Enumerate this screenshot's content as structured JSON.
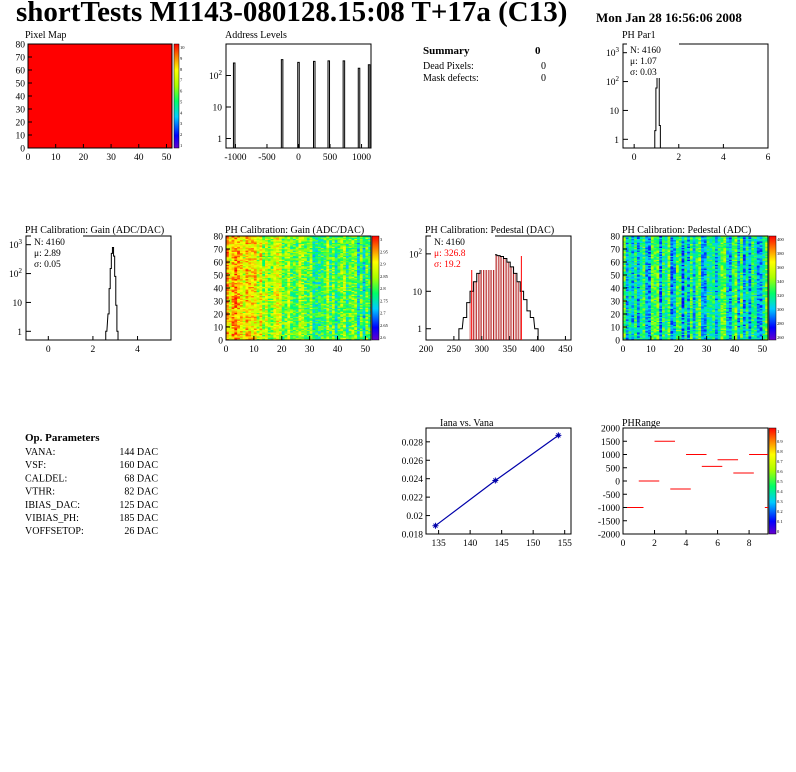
{
  "title": "shortTests M1143-080128.15:08 T+17a (C13)",
  "date": "Mon Jan 28 16:56:06 2008",
  "colors": {
    "red": "#ff0000",
    "blue": "#0000aa",
    "darkred": "#aa0000"
  },
  "summary": {
    "heading": "Summary",
    "value": "0",
    "rows": [
      {
        "label": "Dead Pixels:",
        "value": "0"
      },
      {
        "label": "Mask defects:",
        "value": "0"
      }
    ]
  },
  "op_params": {
    "heading": "Op. Parameters",
    "rows": [
      {
        "label": "VANA:",
        "value": "144 DAC"
      },
      {
        "label": "VSF:",
        "value": "160 DAC"
      },
      {
        "label": "CALDEL:",
        "value": "68 DAC"
      },
      {
        "label": "VTHR:",
        "value": "82 DAC"
      },
      {
        "label": "IBIAS_DAC:",
        "value": "125 DAC"
      },
      {
        "label": "VIBIAS_PH:",
        "value": "185 DAC"
      },
      {
        "label": "VOFFSETOP:",
        "value": "26 DAC"
      }
    ]
  },
  "chart_data": [
    {
      "id": "pixel_map",
      "type": "heatmap",
      "title": "Pixel Map",
      "x_ticks": [
        "0",
        "10",
        "20",
        "30",
        "40",
        "50"
      ],
      "y_ticks": [
        "0",
        "10",
        "20",
        "30",
        "40",
        "50",
        "60",
        "70",
        "80"
      ],
      "xlim": [
        0,
        52
      ],
      "ylim": [
        0,
        80
      ],
      "uniform_value": 10,
      "palette_ticks": [
        "10",
        "9",
        "8",
        "7",
        "6",
        "5",
        "4",
        "3",
        "2",
        "1"
      ]
    },
    {
      "id": "address_levels",
      "type": "bar",
      "title": "Address Levels",
      "log_y": true,
      "x_ticks": [
        "-1000",
        "-500",
        "0",
        "500",
        "1000"
      ],
      "y_ticks": [
        "1",
        "10",
        "10^2"
      ],
      "xlim": [
        -1150,
        1150
      ],
      "ylim": [
        0.5,
        1000
      ],
      "peaks": [
        {
          "x": -1020,
          "y": 250
        },
        {
          "x": -260,
          "y": 320
        },
        {
          "x": 0,
          "y": 260
        },
        {
          "x": 250,
          "y": 280
        },
        {
          "x": 480,
          "y": 290
        },
        {
          "x": 720,
          "y": 290
        },
        {
          "x": 960,
          "y": 170
        },
        {
          "x": 1120,
          "y": 220
        }
      ]
    },
    {
      "id": "ph_par1",
      "type": "bar",
      "title": "PH Par1",
      "log_y": true,
      "x_ticks": [
        "0",
        "2",
        "4",
        "6"
      ],
      "y_ticks": [
        "1",
        "10",
        "10^2",
        "10^3"
      ],
      "xlim": [
        -0.5,
        6
      ],
      "ylim": [
        0.5,
        2000
      ],
      "stats": [
        {
          "label": "N:",
          "value": "4160"
        },
        {
          "label": "μ:",
          "value": "1.07"
        },
        {
          "label": "σ:",
          "value": "0.03"
        }
      ],
      "bins": [
        {
          "x": 0.95,
          "y": 2
        },
        {
          "x": 1.0,
          "y": 60
        },
        {
          "x": 1.05,
          "y": 900
        },
        {
          "x": 1.1,
          "y": 400
        },
        {
          "x": 1.15,
          "y": 3
        }
      ]
    },
    {
      "id": "ph_gain_hist",
      "type": "bar",
      "title": "PH Calibration: Gain (ADC/DAC)",
      "log_y": true,
      "x_ticks": [
        "0",
        "2",
        "4"
      ],
      "y_ticks": [
        "1",
        "10",
        "10^2",
        "10^3"
      ],
      "xlim": [
        -1,
        5.5
      ],
      "ylim": [
        0.5,
        2000
      ],
      "stats": [
        {
          "label": "N:",
          "value": "4160"
        },
        {
          "label": "μ:",
          "value": "2.89"
        },
        {
          "label": "σ:",
          "value": "0.05"
        }
      ],
      "bins": [
        {
          "x": 2.6,
          "y": 1
        },
        {
          "x": 2.7,
          "y": 4
        },
        {
          "x": 2.75,
          "y": 30
        },
        {
          "x": 2.8,
          "y": 150
        },
        {
          "x": 2.85,
          "y": 500
        },
        {
          "x": 2.9,
          "y": 800
        },
        {
          "x": 2.95,
          "y": 400
        },
        {
          "x": 3.0,
          "y": 80
        },
        {
          "x": 3.05,
          "y": 8
        },
        {
          "x": 3.1,
          "y": 1
        }
      ]
    },
    {
      "id": "ph_gain_map",
      "type": "heatmap",
      "title": "PH Calibration: Gain (ADC/DAC)",
      "x_ticks": [
        "0",
        "10",
        "20",
        "30",
        "40",
        "50"
      ],
      "y_ticks": [
        "0",
        "10",
        "20",
        "30",
        "40",
        "50",
        "60",
        "70",
        "80"
      ],
      "xlim": [
        0,
        52
      ],
      "ylim": [
        0,
        80
      ],
      "value_range": [
        2.6,
        3.0
      ],
      "palette_ticks": [
        "3",
        "2.95",
        "2.9",
        "2.85",
        "2.8",
        "2.75",
        "2.7",
        "2.65",
        "2.6"
      ]
    },
    {
      "id": "ph_pedestal_hist",
      "type": "bar",
      "title": "PH Calibration: Pedestal (DAC)",
      "log_y": true,
      "x_ticks": [
        "200",
        "250",
        "300",
        "350",
        "400",
        "450"
      ],
      "y_ticks": [
        "1",
        "10",
        "10^2"
      ],
      "xlim": [
        200,
        460
      ],
      "ylim": [
        0.5,
        300
      ],
      "stats": [
        {
          "label": "N:",
          "value": "4160"
        },
        {
          "label": "μ:",
          "value": "326.8"
        },
        {
          "label": "σ:",
          "value": "19.2"
        }
      ],
      "fit_lines": [
        282,
        371
      ],
      "bins": [
        {
          "x": 262,
          "y": 1
        },
        {
          "x": 270,
          "y": 2
        },
        {
          "x": 276,
          "y": 5
        },
        {
          "x": 282,
          "y": 10
        },
        {
          "x": 288,
          "y": 18
        },
        {
          "x": 294,
          "y": 30
        },
        {
          "x": 300,
          "y": 45
        },
        {
          "x": 306,
          "y": 60
        },
        {
          "x": 312,
          "y": 72
        },
        {
          "x": 318,
          "y": 85
        },
        {
          "x": 324,
          "y": 95
        },
        {
          "x": 330,
          "y": 90
        },
        {
          "x": 336,
          "y": 85
        },
        {
          "x": 342,
          "y": 75
        },
        {
          "x": 348,
          "y": 60
        },
        {
          "x": 354,
          "y": 45
        },
        {
          "x": 360,
          "y": 30
        },
        {
          "x": 366,
          "y": 18
        },
        {
          "x": 372,
          "y": 10
        },
        {
          "x": 378,
          "y": 6
        },
        {
          "x": 384,
          "y": 3
        },
        {
          "x": 390,
          "y": 2
        },
        {
          "x": 398,
          "y": 1
        }
      ]
    },
    {
      "id": "ph_pedestal_map",
      "type": "heatmap",
      "title": "PH Calibration: Pedestal (ADC)",
      "x_ticks": [
        "0",
        "10",
        "20",
        "30",
        "40",
        "50"
      ],
      "y_ticks": [
        "0",
        "10",
        "20",
        "30",
        "40",
        "50",
        "60",
        "70",
        "80"
      ],
      "xlim": [
        0,
        52
      ],
      "ylim": [
        0,
        80
      ],
      "value_range": [
        260,
        400
      ],
      "palette_ticks": [
        "400",
        "380",
        "360",
        "340",
        "320",
        "300",
        "280",
        "260"
      ]
    },
    {
      "id": "iana_vs_vana",
      "type": "line",
      "title": "Iana vs. Vana",
      "x_ticks": [
        "135",
        "140",
        "145",
        "150",
        "155"
      ],
      "y_ticks": [
        "0.018",
        "0.02",
        "0.022",
        "0.024",
        "0.026",
        "0.028"
      ],
      "xlim": [
        133,
        156
      ],
      "ylim": [
        0.018,
        0.0295
      ],
      "x": [
        134.5,
        144,
        154
      ],
      "y": [
        0.0189,
        0.0238,
        0.0287
      ]
    },
    {
      "id": "ph_range",
      "type": "heatmap",
      "title": "PHRange",
      "x_ticks": [
        "0",
        "2",
        "4",
        "6",
        "8"
      ],
      "y_ticks": [
        "2000",
        "1500",
        "1000",
        "500",
        "0",
        "-500",
        "-1000",
        "-1500",
        "-2000"
      ],
      "xlim": [
        0,
        9.2
      ],
      "ylim": [
        -2000,
        2000
      ],
      "palette_ticks": [
        "1",
        "0.9",
        "0.8",
        "0.7",
        "0.6",
        "0.5",
        "0.4",
        "0.3",
        "0.2",
        "0.1",
        "0"
      ],
      "segments": [
        {
          "x": 0,
          "y": -1000
        },
        {
          "x": 1,
          "y": 0
        },
        {
          "x": 2,
          "y": 1500
        },
        {
          "x": 3,
          "y": -300
        },
        {
          "x": 4,
          "y": 1000
        },
        {
          "x": 5,
          "y": 550
        },
        {
          "x": 6,
          "y": 800
        },
        {
          "x": 7,
          "y": 300
        },
        {
          "x": 8,
          "y": 1000
        },
        {
          "x": 9,
          "y": -1000
        }
      ]
    }
  ]
}
